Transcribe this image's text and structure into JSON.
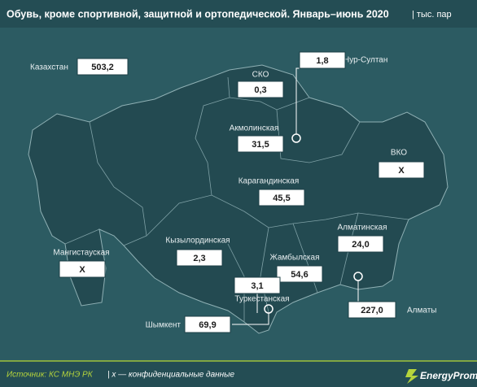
{
  "header": {
    "title": "Обувь, кроме спортивной, защитной и ортопедической. Январь–июнь 2020",
    "unit": "| тыс. пар"
  },
  "total": {
    "label": "Казахстан",
    "value": "503,2"
  },
  "regions": [
    {
      "name": "СКО",
      "value": "0,3"
    },
    {
      "name": "Акмолинская",
      "value": "31,5"
    },
    {
      "name": "Карагандинская",
      "value": "45,5"
    },
    {
      "name": "ВКО",
      "value": "X"
    },
    {
      "name": "Алматинская",
      "value": "24,0"
    },
    {
      "name": "Жамбылская",
      "value": "54,6"
    },
    {
      "name": "Кызылординская",
      "value": "2,3"
    },
    {
      "name": "Мангистауская",
      "value": "X"
    },
    {
      "name": "Туркестанская",
      "value": "3,1"
    }
  ],
  "cities": [
    {
      "name": "Нур-Султан",
      "value": "1,8"
    },
    {
      "name": "Алматы",
      "value": "227,0"
    },
    {
      "name": "Шымкент",
      "value": "69,9"
    }
  ],
  "footer": {
    "source": "Источник: КС МНЭ РК",
    "note": "| x — конфиденциальные данные",
    "brand": "EnergyProm"
  }
}
